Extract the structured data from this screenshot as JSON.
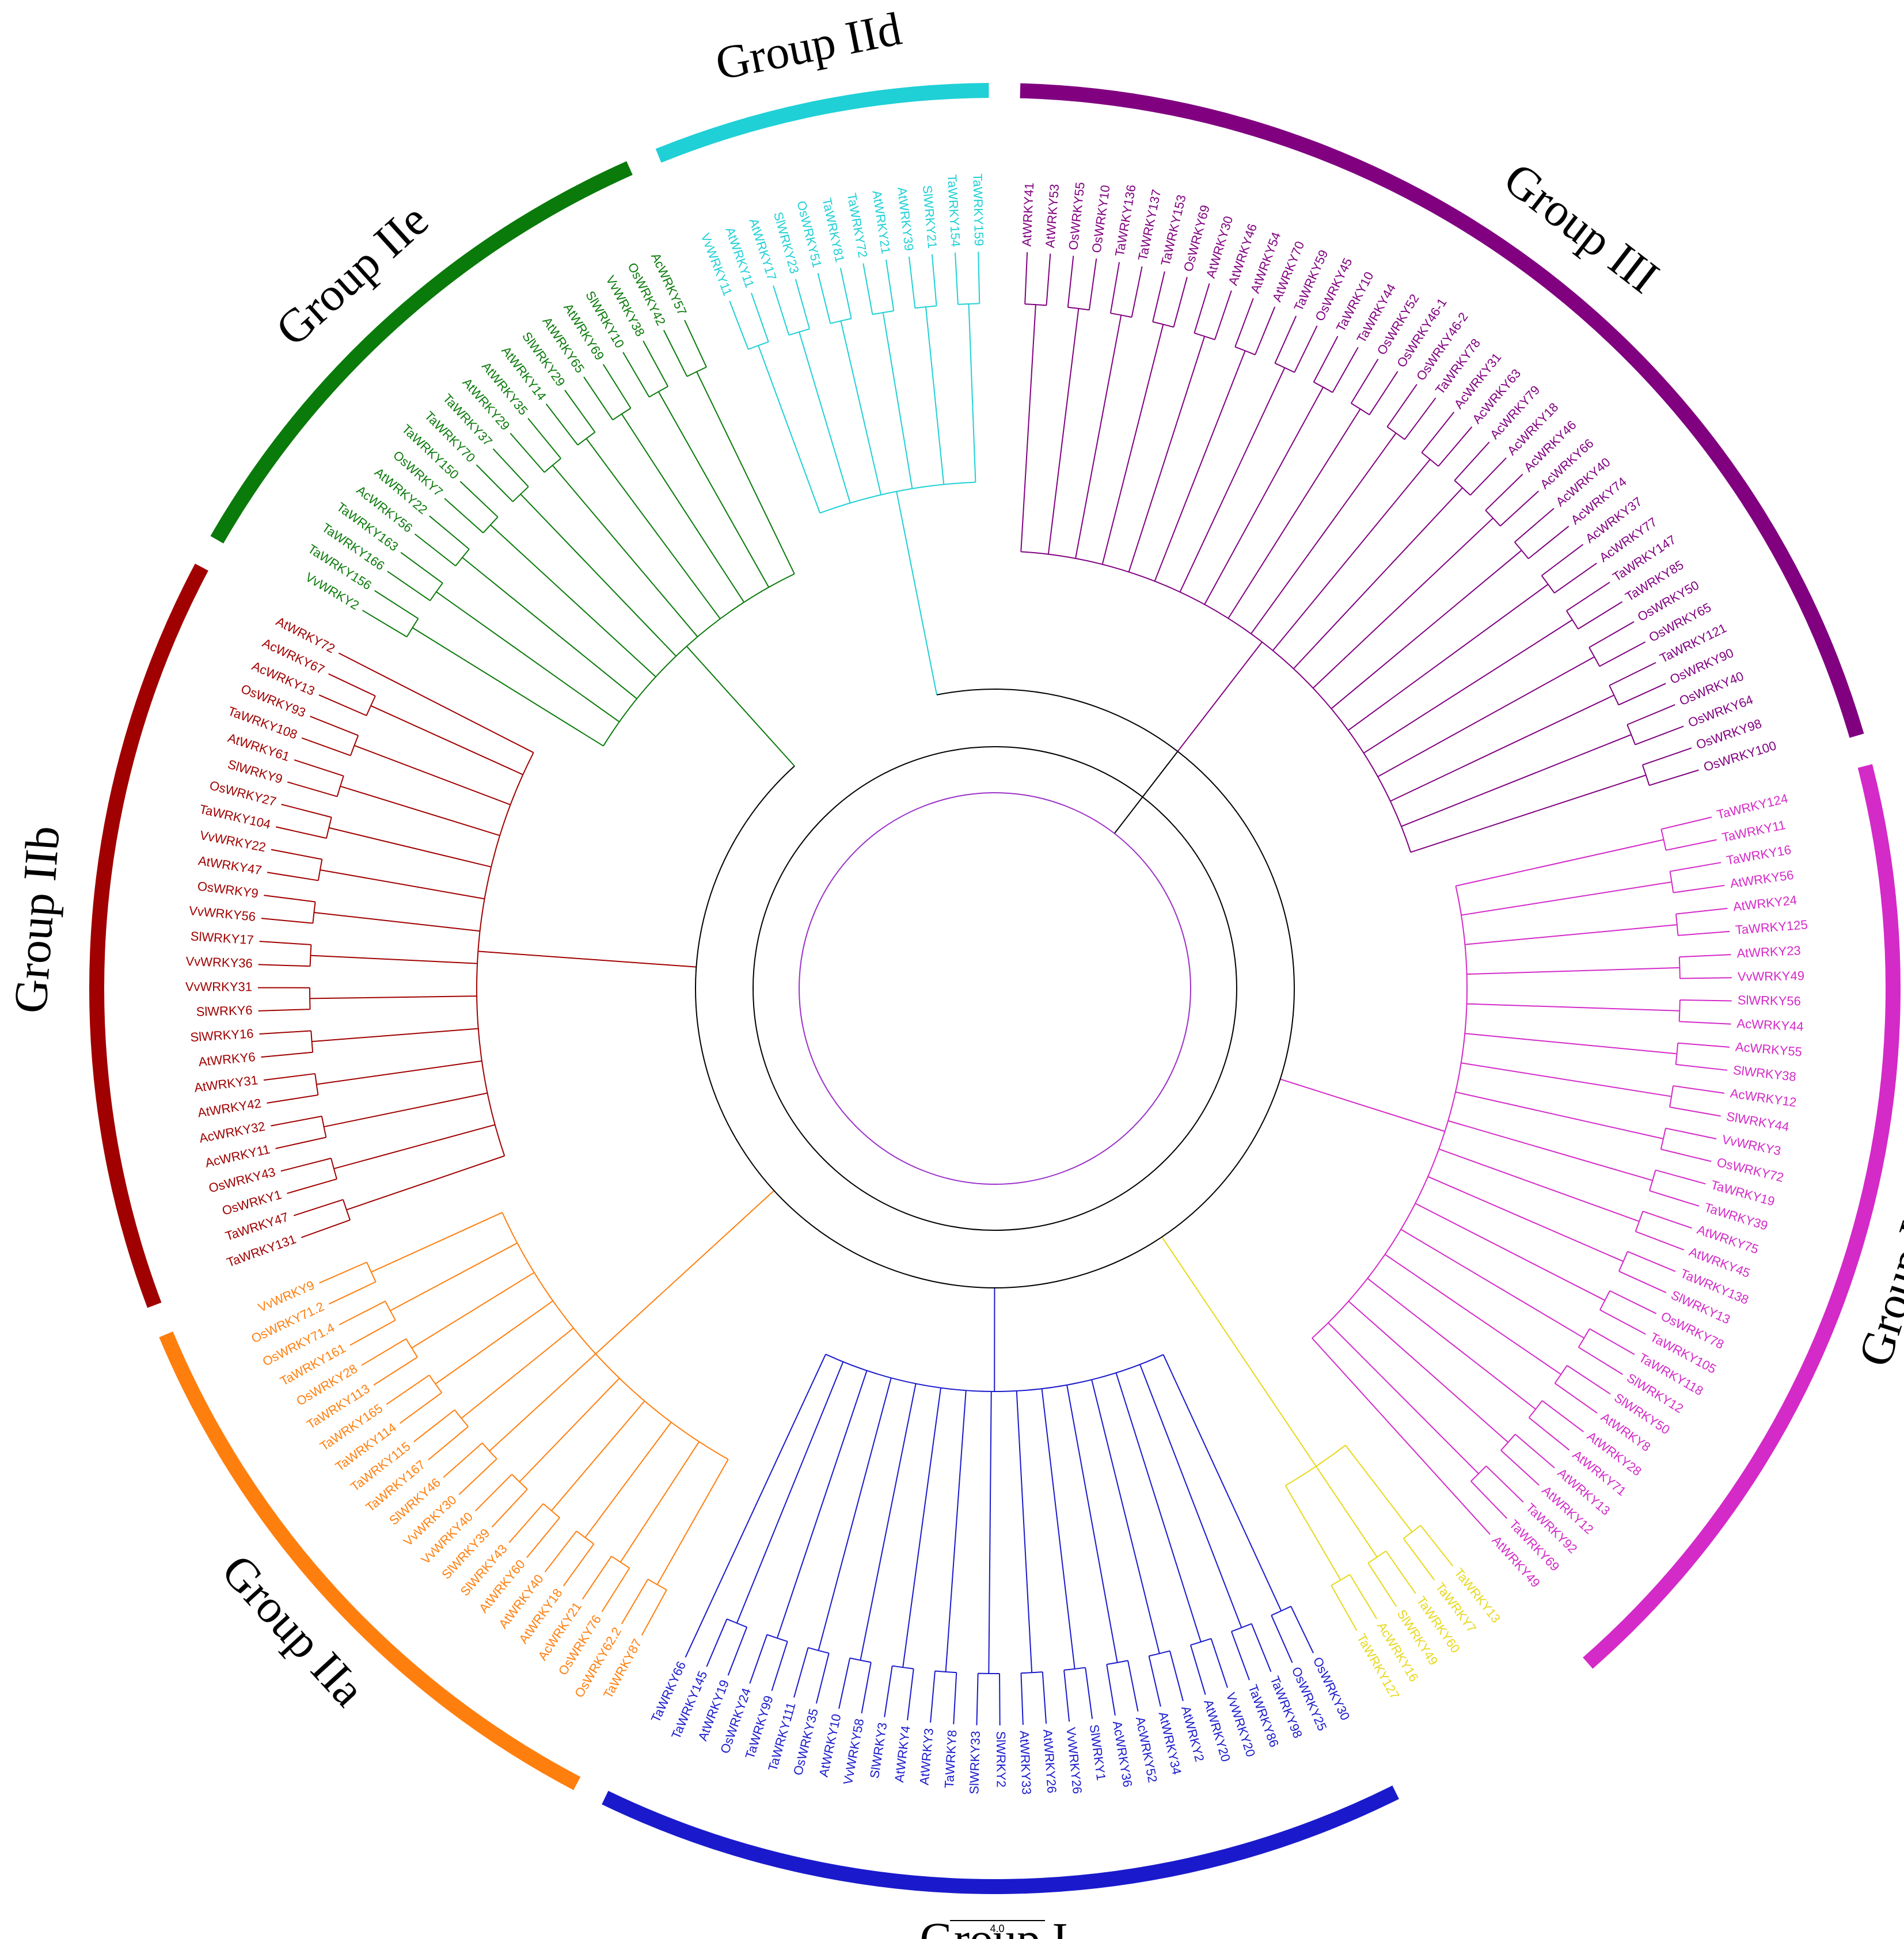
{
  "groups": [
    {
      "name": "Group IId",
      "color": "#1fd0d6",
      "leaves": [
        "VvWRKY11",
        "AtWRKY11",
        "AtWRKY17",
        "SlWRKY23",
        "OsWRKY51",
        "TaWRKY81",
        "TaWRKY72",
        "AtWRKY21",
        "AtWRKY39",
        "SlWRKY21",
        "TaWRKY154",
        "TaWRKY159"
      ]
    },
    {
      "name": "Group III",
      "color": "#800080",
      "leaves": [
        "AtWRKY41",
        "AtWRKY53",
        "OsWRKY55",
        "OsWRKY10",
        "TaWRKY136",
        "TaWRKY137",
        "TaWRKY153",
        "OsWRKY69",
        "AtWRKY30",
        "AtWRKY46",
        "AtWRKY54",
        "AtWRKY70",
        "TaWRKY59",
        "OsWRKY45",
        "TaWRKY10",
        "TaWRKY44",
        "OsWRKY52",
        "OsWRKY46-1",
        "OsWRKY46-2",
        "TaWRKY78",
        "AcWRKY31",
        "AcWRKY63",
        "AcWRKY79",
        "AcWRKY18",
        "AcWRKY46",
        "AcWRKY66",
        "AcWRKY40",
        "AcWRKY74",
        "AcWRKY37",
        "AcWRKY77",
        "TaWRKY147",
        "TaWRKY85",
        "OsWRKY50",
        "OsWRKY65",
        "TaWRKY121",
        "OsWRKY90",
        "OsWRKY40",
        "OsWRKY64",
        "OsWRKY98",
        "OsWRKY100"
      ]
    },
    {
      "name": "Group IIc",
      "color": "#d42ac8",
      "leaves": [
        "TaWRKY124",
        "TaWRKY11",
        "TaWRKY16",
        "AtWRKY56",
        "AtWRKY24",
        "TaWRKY125",
        "AtWRKY23",
        "VvWRKY49",
        "SlWRKY56",
        "AcWRKY44",
        "AcWRKY55",
        "SlWRKY38",
        "AcWRKY12",
        "SlWRKY44",
        "VvWRKY3",
        "OsWRKY72",
        "TaWRKY19",
        "TaWRKY39",
        "AtWRKY75",
        "AtWRKY45",
        "TaWRKY138",
        "SlWRKY13",
        "OsWRKY78",
        "TaWRKY105",
        "TaWRKY118",
        "SlWRKY12",
        "SlWRKY50",
        "AtWRKY8",
        "AtWRKY28",
        "AtWRKY71",
        "AtWRKY13",
        "AtWRKY12",
        "TaWRKY92",
        "TaWRKY69",
        "AtWRKY49"
      ]
    },
    {
      "color": "#e8d81c",
      "leaves": [
        "TaWRKY13",
        "TaWRKY7",
        "TaWRKY60",
        "SlWRKY49",
        "AcWRKY16",
        "TaWRKY127"
      ]
    },
    {
      "name": "Group I",
      "color": "#1a1acc",
      "leaves": [
        "OsWRKY30",
        "OsWRKY25",
        "TaWRKY98",
        "TaWRKY86",
        "VvWRKY20",
        "AtWRKY20",
        "AtWRKY2",
        "AtWRKY34",
        "AcWRKY52",
        "AcWRKY36",
        "SlWRKY1",
        "VvWRKY26",
        "AtWRKY26",
        "AtWRKY33",
        "SlWRKY2",
        "SlWRKY33",
        "TaWRKY8",
        "AtWRKY3",
        "AtWRKY4",
        "SlWRKY3",
        "VvWRKY58",
        "AtWRKY10",
        "OsWRKY35",
        "TaWRKY111",
        "TaWRKY99",
        "OsWRKY24",
        "AtWRKY19",
        "TaWRKY145",
        "TaWRKY66"
      ]
    },
    {
      "name": "Group IIa",
      "color": "#ff7f0e",
      "leaves": [
        "TaWRKY87",
        "OsWRKY62.2",
        "OsWRKY76",
        "AcWRKY21",
        "AtWRKY18",
        "AtWRKY40",
        "AtWRKY60",
        "SlWRKY43",
        "SlWRKY39",
        "VvWRKY40",
        "VvWRKY30",
        "SlWRKY46",
        "TaWRKY167",
        "TaWRKY115",
        "TaWRKY114",
        "TaWRKY165",
        "TaWRKY113",
        "OsWRKY28",
        "TaWRKY161",
        "OsWRKY71.4",
        "OsWRKY71.2",
        "VvWRKY9"
      ]
    },
    {
      "name": "Group IIb",
      "color": "#a00000",
      "leaves": [
        "TaWRKY131",
        "TaWRKY47",
        "OsWRKY1",
        "OsWRKY43",
        "AcWRKY11",
        "AcWRKY32",
        "AtWRKY42",
        "AtWRKY31",
        "AtWRKY6",
        "SlWRKY16",
        "SlWRKY6",
        "VvWRKY31",
        "VvWRKY36",
        "SlWRKY17",
        "VvWRKY56",
        "OsWRKY9",
        "AtWRKY47",
        "VvWRKY22",
        "TaWRKY104",
        "OsWRKY27",
        "SlWRKY9",
        "AtWRKY61",
        "TaWRKY108",
        "OsWRKY93",
        "AcWRKY13",
        "AcWRKY67",
        "AtWRKY72"
      ]
    },
    {
      "name": "Group IIe",
      "color": "#0a7a0a",
      "leaves": [
        "VvWRKY2",
        "TaWRKY156",
        "TaWRKY166",
        "TaWRKY163",
        "AcWRKY56",
        "AtWRKY22",
        "OsWRKY7",
        "TaWRKY150",
        "TaWRKY70",
        "TaWRKY37",
        "AtWRKY29",
        "AtWRKY35",
        "AtWRKY14",
        "SlWRKY29",
        "AtWRKY65",
        "AtWRKY69",
        "SlWRKY10",
        "VvWRKY38",
        "OsWRKY42",
        "AcWRKY57"
      ]
    }
  ],
  "scale_bar": {
    "label": "4.0"
  }
}
